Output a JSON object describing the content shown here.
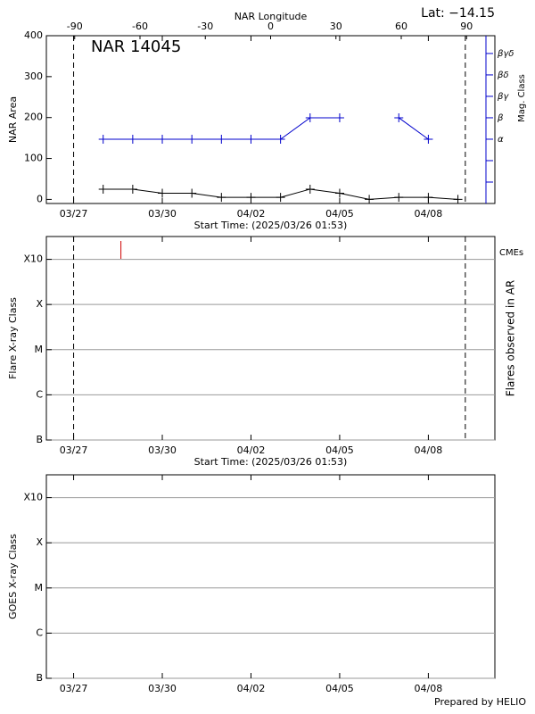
{
  "chart_data": [
    {
      "type": "line",
      "title": "NAR 14045",
      "annotation": "Lat: −14.15",
      "x2label": "NAR Longitude",
      "x2lim": [
        -103,
        103
      ],
      "x2ticks": [
        -90,
        -60,
        -30,
        0,
        30,
        60,
        90
      ],
      "xlabel": "Start Time: (2025/03/26 01:53)",
      "ylabel": "NAR Area",
      "y2label": "Mag. Class",
      "xlim": [
        "03/26 01:53",
        "04/10 06:00"
      ],
      "xticks": [
        "03/27",
        "03/30",
        "04/02",
        "04/05",
        "04/08"
      ],
      "ylim": [
        -10,
        400
      ],
      "yticks": [
        0,
        100,
        200,
        300,
        400
      ],
      "y2lim": [
        -2,
        5.83
      ],
      "y2ticks": [
        {
          "value": -1,
          "label": null
        },
        {
          "value": 0,
          "label": null
        },
        {
          "value": 1,
          "label": "α"
        },
        {
          "value": 2,
          "label": "β"
        },
        {
          "value": 3,
          "label": "βγ"
        },
        {
          "value": 4,
          "label": "βδ"
        },
        {
          "value": 5,
          "label": "βγδ"
        }
      ],
      "limb_times": [
        "03/27 00:00",
        "04/09 06:00"
      ],
      "x": [
        "03/28",
        "03/29",
        "03/30",
        "03/31",
        "04/01",
        "04/02",
        "04/03",
        "04/04",
        "04/05",
        "04/06",
        "04/07",
        "04/08",
        "04/09"
      ],
      "series": [
        {
          "color": "#000000",
          "values": [
            25,
            25,
            15,
            15,
            5,
            5,
            5,
            25,
            15,
            0,
            5,
            5,
            0
          ]
        },
        {
          "color": "#0000cc",
          "axis": "y2",
          "values": [
            1,
            1,
            1,
            1,
            1,
            1,
            1,
            2,
            2,
            null,
            2,
            1,
            null
          ]
        }
      ]
    },
    {
      "type": "flares",
      "xlabel": "Start Time: (2025/03/26 01:53)",
      "ylabel": "Flare X-ray Class",
      "y2label": "Flares observed in AR",
      "xlim": [
        "03/26 01:53",
        "04/10 06:00"
      ],
      "xticks": [
        "03/27",
        "03/30",
        "04/02",
        "04/05",
        "04/08"
      ],
      "log": true,
      "grid": true,
      "ylim": [
        1e-07,
        0.0032
      ],
      "yticks": [
        {
          "value": 1e-07,
          "label": "B"
        },
        {
          "value": 1e-06,
          "label": "C"
        },
        {
          "value": 1e-05,
          "label": "M"
        },
        {
          "value": 0.0001,
          "label": "X"
        },
        {
          "value": 0.001,
          "label": "X10"
        }
      ],
      "limb_times": [
        "03/27 00:00",
        "04/09 06:00"
      ],
      "cmes": {
        "name": "CMEs",
        "color": "#d00000",
        "x": [
          "03/28 14:24"
        ]
      }
    },
    {
      "type": "goes",
      "ylabel": "GOES X-ray Class",
      "xlim": [
        "03/26 01:53",
        "04/10 06:00"
      ],
      "xticks": [
        "03/27",
        "03/30",
        "04/02",
        "04/05",
        "04/08"
      ],
      "log": true,
      "grid": true,
      "ylim": [
        1e-07,
        0.0032
      ],
      "yticks": [
        {
          "value": 1e-07,
          "label": "B"
        },
        {
          "value": 1e-06,
          "label": "C"
        },
        {
          "value": 1e-05,
          "label": "M"
        },
        {
          "value": 0.0001,
          "label": "X"
        },
        {
          "value": 0.001,
          "label": "X10"
        }
      ]
    }
  ],
  "footer": "Prepared by HELIO"
}
